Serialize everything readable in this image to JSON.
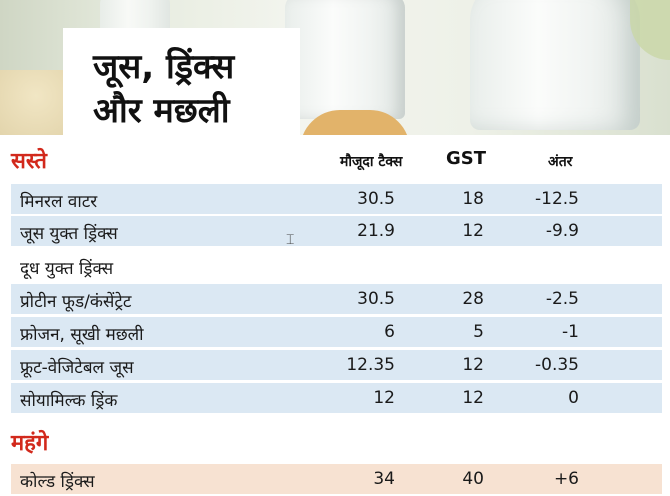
{
  "title": {
    "line1": "जूस, ड्रिंक्स",
    "line2": "और मछली"
  },
  "sections": {
    "cheap": "सस्ते",
    "costly": "महंगे"
  },
  "columns": {
    "current_tax": "मौजूदा टैक्स",
    "gst": "GST",
    "difference": "अंतर"
  },
  "cheap_rows": [
    {
      "name": "मिनरल वाटर",
      "tax": "30.5",
      "gst": "18",
      "diff": "-12.5"
    },
    {
      "name": "जूस युक्त ड्रिंक्स",
      "tax": "21.9",
      "gst": "12",
      "diff": "-9.9"
    },
    {
      "name": "दूध युक्त ड्रिंक्स",
      "tax": "",
      "gst": "",
      "diff": ""
    },
    {
      "name": "प्रोटीन फूड/कंसेंट्रेट",
      "tax": "30.5",
      "gst": "28",
      "diff": "-2.5"
    },
    {
      "name": "फ्रोजन, सूखी मछली",
      "tax": "6",
      "gst": "5",
      "diff": "-1"
    },
    {
      "name": "फ्रूट-वेजिटेबल जूस",
      "tax": "12.35",
      "gst": "12",
      "diff": "-0.35"
    },
    {
      "name": "सोयामिल्क ड्रिंक",
      "tax": "12",
      "gst": "12",
      "diff": "0"
    }
  ],
  "costly_rows": [
    {
      "name": "कोल्ड ड्रिंक्स",
      "tax": "34",
      "gst": "40",
      "diff": "+6"
    }
  ],
  "colors": {
    "section_heading": "#d2291c",
    "row_blue": "#dbe8f3",
    "row_pink": "#f7e2d2"
  }
}
